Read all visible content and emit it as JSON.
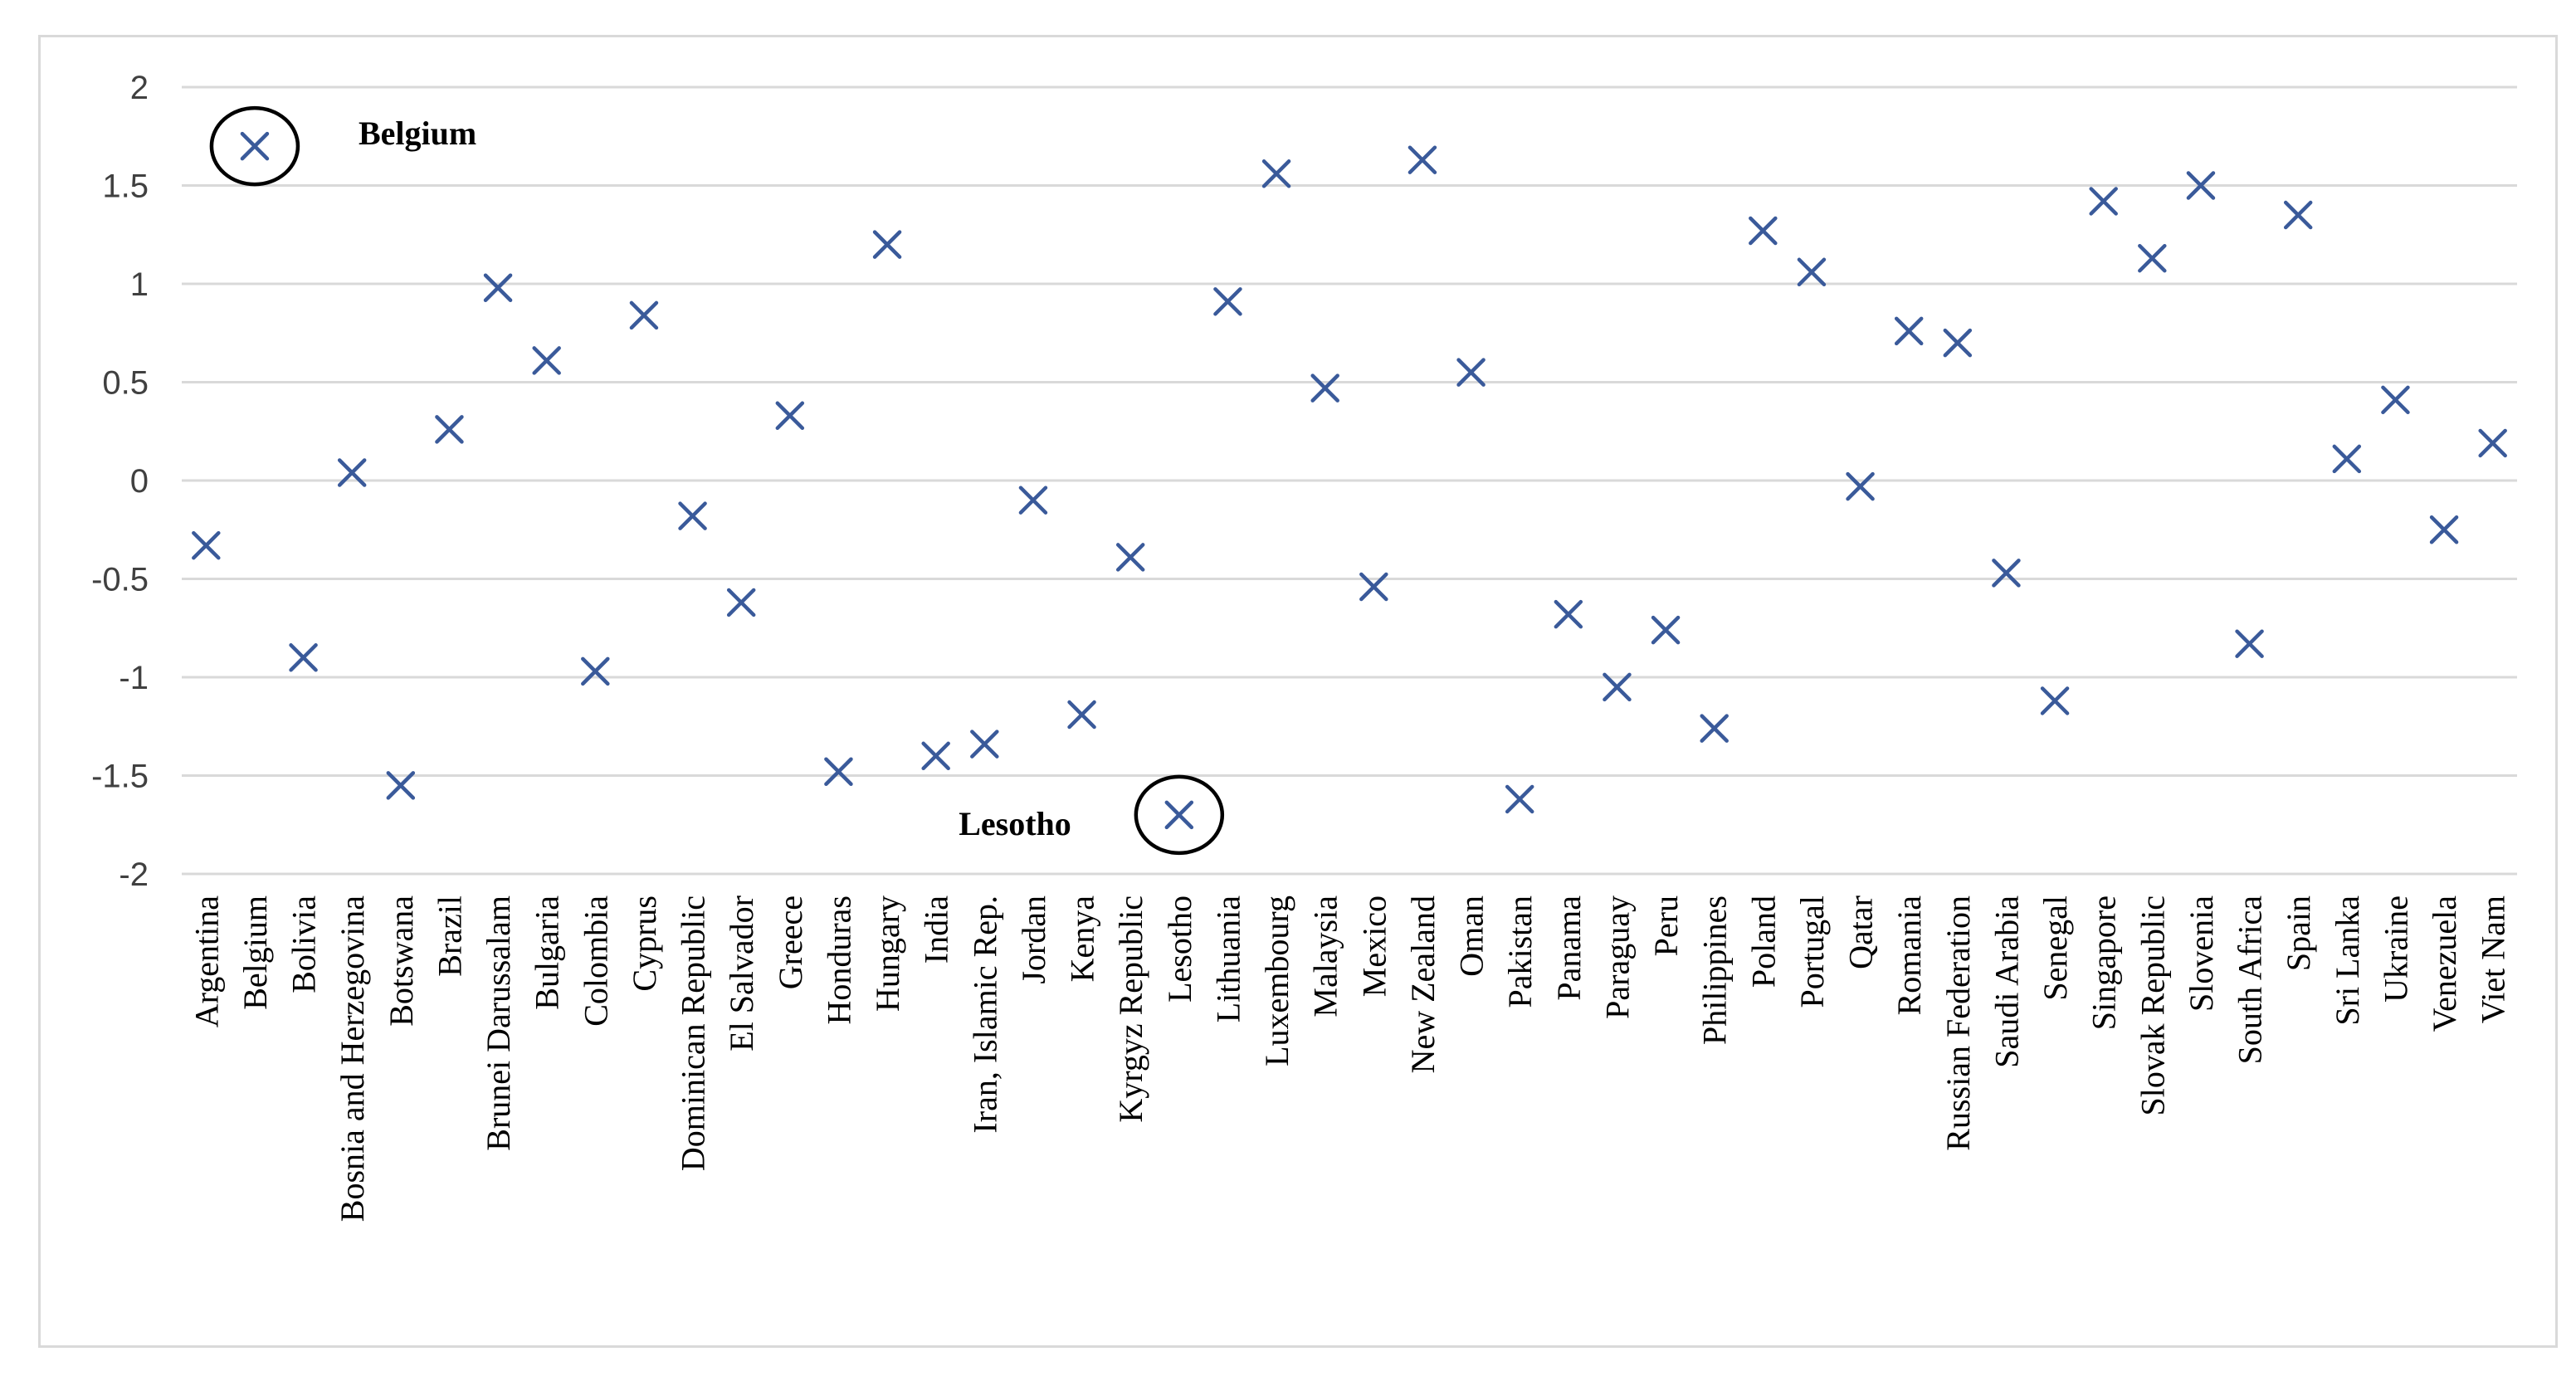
{
  "chart_data": {
    "type": "scatter",
    "title": "",
    "xlabel": "",
    "ylabel": "",
    "ylim": [
      -2,
      2
    ],
    "yticks": [
      2,
      1.5,
      1,
      0.5,
      0,
      -0.5,
      -1,
      -1.5,
      -2
    ],
    "ytick_labels": [
      "2",
      "1.5",
      "1",
      "0.5",
      "0",
      "-0.5",
      "-1",
      "-1.5",
      "-2"
    ],
    "grid": true,
    "legend": "none",
    "marker": "x",
    "marker_color": "#3a5a9a",
    "categories": [
      "Argentina",
      "Belgium",
      "Bolivia",
      "Bosnia and Herzegovina",
      "Botswana",
      "Brazil",
      "Brunei Darussalam",
      "Bulgaria",
      "Colombia",
      "Cyprus",
      "Dominican Republic",
      "El Salvador",
      "Greece",
      "Honduras",
      "Hungary",
      "India",
      "Iran, Islamic Rep.",
      "Jordan",
      "Kenya",
      "Kyrgyz Republic",
      "Lesotho",
      "Lithuania",
      "Luxembourg",
      "Malaysia",
      "Mexico",
      "New Zealand",
      "Oman",
      "Pakistan",
      "Panama",
      "Paraguay",
      "Peru",
      "Philippines",
      "Poland",
      "Portugal",
      "Qatar",
      "Romania",
      "Russian Federation",
      "Saudi Arabia",
      "Senegal",
      "Singapore",
      "Slovak Republic",
      "Slovenia",
      "South Africa",
      "Spain",
      "Sri Lanka",
      "Ukraine",
      "Venezuela",
      "Viet Nam"
    ],
    "values": [
      -0.33,
      1.7,
      -0.9,
      0.04,
      -1.55,
      0.26,
      0.98,
      0.61,
      -0.97,
      0.84,
      -0.18,
      -0.62,
      0.33,
      -1.48,
      1.2,
      -1.4,
      -1.34,
      -0.1,
      -1.19,
      -0.39,
      -1.7,
      0.91,
      1.56,
      0.47,
      -0.54,
      1.63,
      0.55,
      -1.62,
      -0.68,
      -1.05,
      -0.76,
      -1.26,
      1.27,
      1.06,
      -0.03,
      0.76,
      0.7,
      -0.47,
      -1.12,
      1.42,
      1.13,
      1.5,
      -0.83,
      1.35,
      0.11,
      0.41,
      -0.25,
      0.19
    ],
    "annotations": [
      {
        "label": "Belgium",
        "category": "Belgium"
      },
      {
        "label": "Lesotho",
        "category": "Lesotho"
      }
    ]
  }
}
